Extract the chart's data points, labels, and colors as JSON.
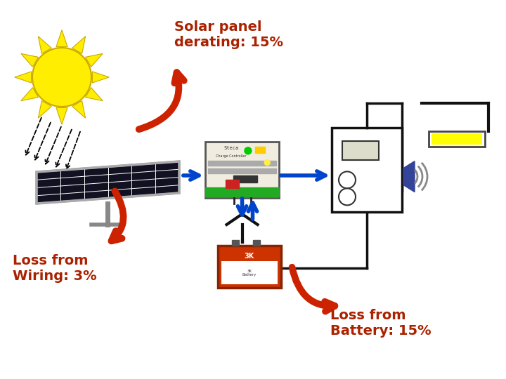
{
  "background_color": "#ffffff",
  "labels": {
    "solar_panel_derating": "Solar panel\nderating: 15%",
    "loss_wiring": "Loss from\nWiring: 3%",
    "loss_battery": "Loss from\nBattery: 15%"
  },
  "label_color": "#aa2200",
  "label_fontsize": 14,
  "sun_color": "#ffee00",
  "sun_outline": "#ccaa00",
  "arrow_blue": "#0044cc",
  "arrow_red": "#cc2200",
  "wire_color": "#111111",
  "panel_color": "#111122",
  "panel_frame": "#888888",
  "cc_bg": "#f0f0e0",
  "bat_color": "#cc3300",
  "load_color": "#ffffff",
  "lamp_color": "#ffff00",
  "speaker_color": "#334499"
}
